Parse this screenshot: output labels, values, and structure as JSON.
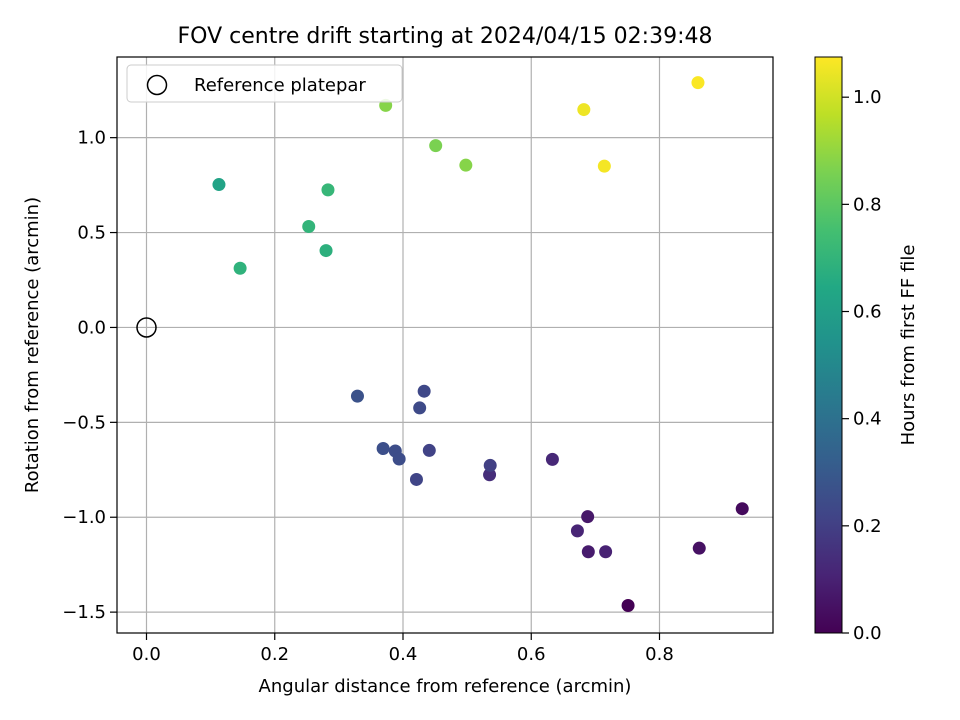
{
  "chart_data": {
    "type": "scatter",
    "title": "FOV centre drift starting at 2024/04/15 02:39:48",
    "xlabel": "Angular distance from reference (arcmin)",
    "ylabel": "Rotation from reference (arcmin)",
    "xlim": [
      -0.046,
      0.977
    ],
    "ylim": [
      -1.61,
      1.425
    ],
    "xticks": [
      0.0,
      0.2,
      0.4,
      0.6,
      0.8
    ],
    "xtick_labels": [
      "0.0",
      "0.2",
      "0.4",
      "0.6",
      "0.8"
    ],
    "yticks": [
      -1.5,
      -1.0,
      -0.5,
      0.0,
      0.5,
      1.0
    ],
    "ytick_labels": [
      "−1.5",
      "−1.0",
      "−0.5",
      "0.0",
      "0.5",
      "1.0"
    ],
    "grid": true,
    "legend": {
      "placement": "upper-left",
      "entries": [
        "Reference platepar"
      ]
    },
    "colormap": "viridis",
    "colorbar": {
      "label": "Hours from first FF file",
      "range": [
        0.0,
        1.075
      ],
      "ticks": [
        0.0,
        0.2,
        0.4,
        0.6,
        0.8,
        1.0
      ],
      "tick_labels": [
        "0.0",
        "0.2",
        "0.4",
        "0.6",
        "0.8",
        "1.0"
      ]
    },
    "reference_point": {
      "x": 0.0,
      "y": 0.0
    },
    "points": [
      {
        "x": 0.751,
        "y": -1.465,
        "c": 0.0
      },
      {
        "x": 0.929,
        "y": -0.955,
        "c": 0.03
      },
      {
        "x": 0.862,
        "y": -1.163,
        "c": 0.05
      },
      {
        "x": 0.688,
        "y": -0.997,
        "c": 0.07
      },
      {
        "x": 0.689,
        "y": -1.182,
        "c": 0.08
      },
      {
        "x": 0.716,
        "y": -1.182,
        "c": 0.1
      },
      {
        "x": 0.672,
        "y": -1.072,
        "c": 0.11
      },
      {
        "x": 0.633,
        "y": -0.695,
        "c": 0.12
      },
      {
        "x": 0.535,
        "y": -0.776,
        "c": 0.14
      },
      {
        "x": 0.536,
        "y": -0.727,
        "c": 0.2
      },
      {
        "x": 0.421,
        "y": -0.801,
        "c": 0.22
      },
      {
        "x": 0.441,
        "y": -0.648,
        "c": 0.21
      },
      {
        "x": 0.433,
        "y": -0.336,
        "c": 0.23
      },
      {
        "x": 0.426,
        "y": -0.424,
        "c": 0.24
      },
      {
        "x": 0.388,
        "y": -0.651,
        "c": 0.25
      },
      {
        "x": 0.394,
        "y": -0.693,
        "c": 0.25
      },
      {
        "x": 0.369,
        "y": -0.638,
        "c": 0.26
      },
      {
        "x": 0.329,
        "y": -0.362,
        "c": 0.27
      },
      {
        "x": 0.113,
        "y": 0.753,
        "c": 0.62
      },
      {
        "x": 0.146,
        "y": 0.312,
        "c": 0.69
      },
      {
        "x": 0.253,
        "y": 0.532,
        "c": 0.7
      },
      {
        "x": 0.28,
        "y": 0.405,
        "c": 0.68
      },
      {
        "x": 0.283,
        "y": 0.725,
        "c": 0.71
      },
      {
        "x": 0.373,
        "y": 1.17,
        "c": 0.88
      },
      {
        "x": 0.451,
        "y": 0.958,
        "c": 0.86
      },
      {
        "x": 0.498,
        "y": 0.855,
        "c": 0.88
      },
      {
        "x": 0.682,
        "y": 1.148,
        "c": 1.05
      },
      {
        "x": 0.714,
        "y": 0.85,
        "c": 1.06
      },
      {
        "x": 0.86,
        "y": 1.29,
        "c": 1.07
      }
    ]
  }
}
